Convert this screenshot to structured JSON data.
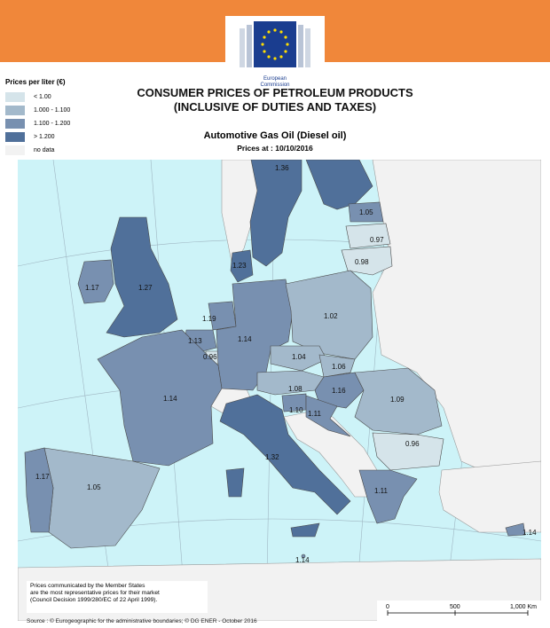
{
  "header": {
    "org_line1": "European",
    "org_line2": "Commission",
    "banner_color": "#f0873a"
  },
  "title": {
    "line1": "CONSUMER PRICES OF PETROLEUM PRODUCTS",
    "line2": "(INCLUSIVE OF DUTIES AND TAXES)"
  },
  "subtitle": "Automotive Gas Oil (Diesel oil)",
  "date_label": "Prices at : 10/10/2016",
  "legend": {
    "title": "Prices per liter (€)",
    "items": [
      {
        "label": "< 1.00",
        "color": "#d5e4ea"
      },
      {
        "label": "1.000 - 1.100",
        "color": "#a3b9cb"
      },
      {
        "label": "1.100 - 1.200",
        "color": "#7890b0"
      },
      {
        "label": "> 1.200",
        "color": "#50709a"
      },
      {
        "label": "no data",
        "color": "#f2f2f2"
      }
    ]
  },
  "map": {
    "sea_color": "#cdf3f8",
    "land_nodata_color": "#f2f2f2",
    "values": {
      "finland": "1.36",
      "estonia": "1.05",
      "latvia": "0.97",
      "lithuania": "0.98",
      "sweden": "1.27",
      "denmark": "1.23",
      "ireland": "1.17",
      "uk": "1.27",
      "netherlands": "1.19",
      "belgium": "1.13",
      "luxembourg": "0.96",
      "germany": "1.14",
      "poland": "1.02",
      "czechia": "1.04",
      "slovakia": "1.06",
      "austria": "1.08",
      "hungary": "1.16",
      "slovenia": "1.10",
      "croatia": "1.11",
      "romania": "1.09",
      "bulgaria": "0.96",
      "france": "1.14",
      "spain": "1.05",
      "portugal": "1.17",
      "italy": "1.32",
      "greece": "1.11",
      "cyprus": "1.14",
      "malta": "1.14"
    }
  },
  "note": {
    "line1": "Prices communicated by the Member States",
    "line2": "are the most representative prices for their market",
    "line3": "(Council Decision 1999/280/EC of 22 April 1999)."
  },
  "scale": {
    "t0": "0",
    "t1": "500",
    "t2": "1,000 Km"
  },
  "source": "Source : © Eurogeographic for the administrative boundaries;   ©  DG ENER - October 2016"
}
